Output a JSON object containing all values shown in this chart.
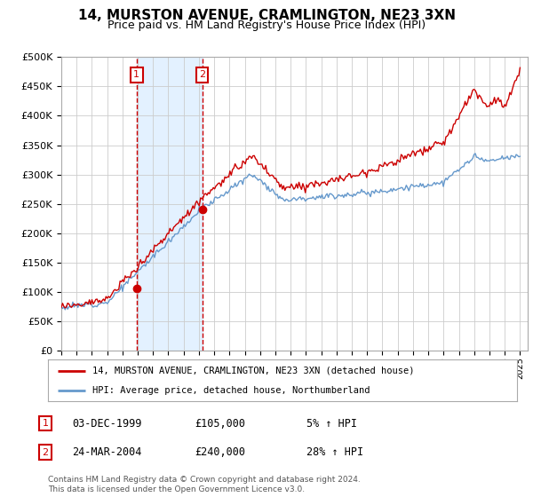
{
  "title": "14, MURSTON AVENUE, CRAMLINGTON, NE23 3XN",
  "subtitle": "Price paid vs. HM Land Registry's House Price Index (HPI)",
  "red_label": "14, MURSTON AVENUE, CRAMLINGTON, NE23 3XN (detached house)",
  "blue_label": "HPI: Average price, detached house, Northumberland",
  "transaction1_date": "03-DEC-1999",
  "transaction1_price": 105000,
  "transaction1_hpi_pct": "5% ↑ HPI",
  "transaction2_date": "24-MAR-2004",
  "transaction2_price": 240000,
  "transaction2_hpi_pct": "28% ↑ HPI",
  "footnote": "Contains HM Land Registry data © Crown copyright and database right 2024.\nThis data is licensed under the Open Government Licence v3.0.",
  "ylim": [
    0,
    500000
  ],
  "yticks": [
    0,
    50000,
    100000,
    150000,
    200000,
    250000,
    300000,
    350000,
    400000,
    450000,
    500000
  ],
  "background_color": "#ffffff",
  "grid_color": "#cccccc",
  "red_color": "#cc0000",
  "blue_color": "#6699cc",
  "shade_color": "#ddeeff",
  "t1": 1999.92,
  "t2": 2004.21,
  "p1": 105000,
  "p2": 240000
}
